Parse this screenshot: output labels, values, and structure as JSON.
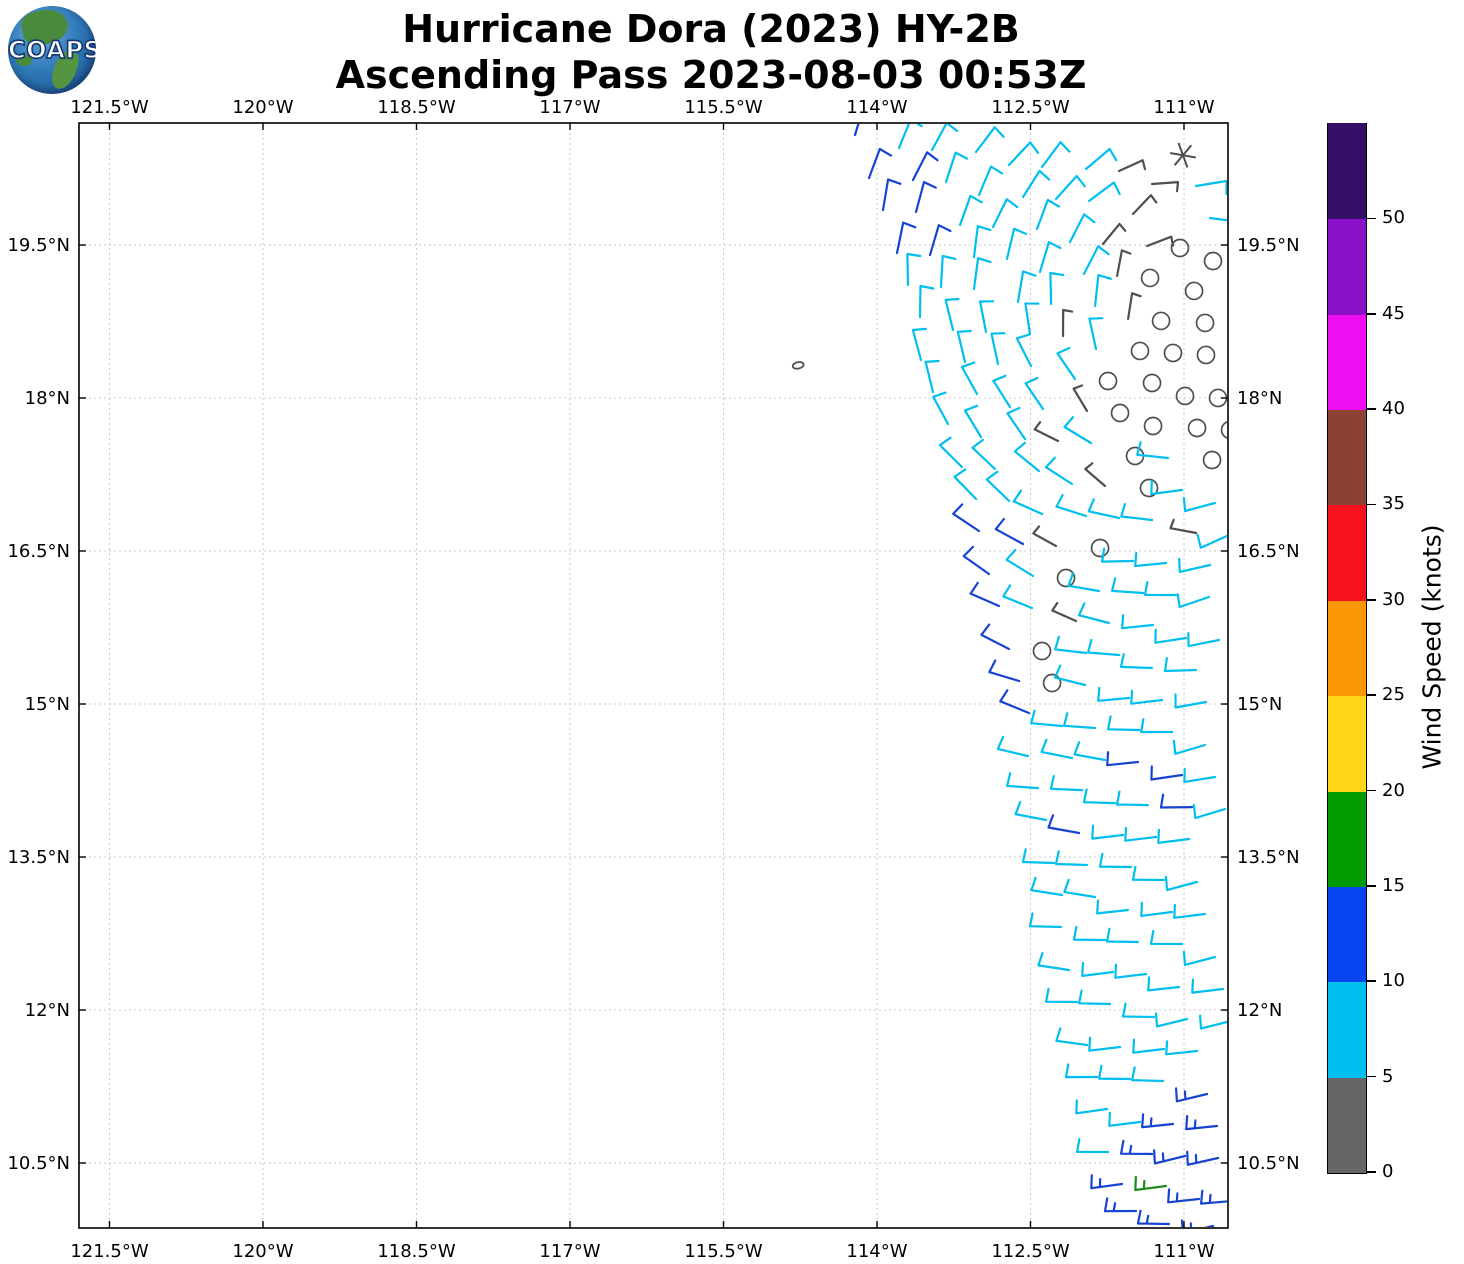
{
  "logo": {
    "text": "COAPS"
  },
  "title": {
    "line1": "Hurricane Dora (2023) HY-2B",
    "line2": "Ascending Pass 2023-08-03 00:53Z"
  },
  "chart_data": {
    "type": "barb_map",
    "title": "Hurricane Dora (2023) HY-2B",
    "subtitle": "Ascending Pass 2023-08-03 00:53Z",
    "satellite": "HY-2B",
    "grid": true,
    "xlim": [
      -121.798,
      -110.57
    ],
    "ylim": [
      9.863,
      20.696
    ],
    "x_tick_values": [
      -121.5,
      -120,
      -118.5,
      -117,
      -115.5,
      -114,
      -112.5,
      -111
    ],
    "x_tick_labels": [
      "121.5°W",
      "120°W",
      "118.5°W",
      "117°W",
      "115.5°W",
      "114°W",
      "112.5°W",
      "111°W"
    ],
    "y_tick_values": [
      19.5,
      18,
      16.5,
      15,
      13.5,
      12,
      10.5
    ],
    "y_tick_labels": [
      "19.5°N",
      "18°N",
      "16.5°N",
      "15°N",
      "13.5°N",
      "12°N",
      "10.5°N"
    ],
    "colorbar": {
      "label": "Wind Speed (knots)",
      "tick_values": [
        0,
        5,
        10,
        15,
        20,
        25,
        30,
        35,
        40,
        45,
        50
      ],
      "segment_colors_bottom_to_top": [
        "#666666",
        "#00BFEF",
        "#0743EE",
        "#009B00",
        "#FFD619",
        "#FB9804",
        "#F6111C",
        "#8B4232",
        "#ED0FF0",
        "#8911C7",
        "#331065"
      ]
    },
    "barb_colors": {
      "g": "#4f4f4f",
      "c": "#00BFEF",
      "b": "#1743D3",
      "B": "#1743D3",
      "G": "#1F8B1F",
      "o": "#4f4f4f"
    },
    "speed_bins_knots": {
      "o": "calm",
      "g": "0-5",
      "c": "5-10",
      "b": "10-15",
      "B": "10-15",
      "G": "15-20"
    },
    "vortex": {
      "center_lon": -110.99,
      "center_lat": 18.67,
      "rotation": "counterclockwise",
      "inflow": 0.12
    },
    "barb_step_dlon": 0.3616,
    "barb_step_dlat": -0.049,
    "barb_rows": [
      {
        "lat": 20.529,
        "lon": -114.166,
        "p": "bccccccggc"
      },
      {
        "lat": 20.176,
        "lon": -114.049,
        "p": "bbcccccg.c"
      },
      {
        "lat": 19.823,
        "lon": -113.932,
        "p": "bbccccggoo"
      },
      {
        "lat": 19.471,
        "lon": -113.814,
        "p": "bbccccgoo"
      },
      {
        "lat": 19.118,
        "lon": -113.726,
        "p": "ccccccgoo"
      },
      {
        "lat": 18.765,
        "lon": -113.629,
        "p": "ccccgcooo"
      },
      {
        "lat": 18.412,
        "lon": -113.531,
        "p": "cccccoooo"
      },
      {
        "lat": 18.059,
        "lon": -113.433,
        "p": "ccccgoooo"
      },
      {
        "lat": 17.706,
        "lon": -113.306,
        "p": "cccgcoco"
      },
      {
        "lat": 17.353,
        "lon": -113.189,
        "p": "ccccgocc"
      },
      {
        "lat": 17.0,
        "lon": -113.071,
        "p": "ccccccgc"
      },
      {
        "lat": 16.647,
        "lon": -112.954,
        "p": "bbgoccc"
      },
      {
        "lat": 16.294,
        "lon": -112.876,
        "p": "bcocccc"
      },
      {
        "lat": 15.941,
        "lon": -112.798,
        "p": "bcgcccc"
      },
      {
        "lat": 15.588,
        "lon": -112.72,
        "p": "bocccc"
      },
      {
        "lat": 15.235,
        "lon": -112.641,
        "p": "bocccc"
      },
      {
        "lat": 14.882,
        "lon": -112.563,
        "p": "bccccc"
      },
      {
        "lat": 14.529,
        "lon": -112.485,
        "p": "cccbbc"
      },
      {
        "lat": 14.176,
        "lon": -112.407,
        "p": "ccccbc"
      },
      {
        "lat": 13.824,
        "lon": -112.348,
        "p": "cbccc"
      },
      {
        "lat": 13.471,
        "lon": -112.29,
        "p": "ccccc"
      },
      {
        "lat": 13.118,
        "lon": -112.231,
        "p": "ccccc"
      },
      {
        "lat": 12.765,
        "lon": -112.153,
        "p": "ccccc"
      },
      {
        "lat": 12.412,
        "lon": -112.094,
        "p": "ccccc"
      },
      {
        "lat": 12.059,
        "lon": -112.035,
        "p": "ccccc"
      },
      {
        "lat": 11.706,
        "lon": -111.957,
        "p": "cccc"
      },
      {
        "lat": 11.353,
        "lon": -111.879,
        "p": "cccB"
      },
      {
        "lat": 11.0,
        "lon": -111.801,
        "p": "ccBB"
      },
      {
        "lat": 10.647,
        "lon": -111.703,
        "p": "cBBB"
      },
      {
        "lat": 10.294,
        "lon": -111.586,
        "p": "BGBB"
      },
      {
        "lat": 9.99,
        "lon": -111.469,
        "p": "BBB"
      }
    ],
    "special_markers": [
      {
        "type": "calm-ellipse",
        "lon": -114.77,
        "lat": 18.32
      },
      {
        "type": "asterisk",
        "lon": -111.01,
        "lat": 20.38
      }
    ]
  }
}
